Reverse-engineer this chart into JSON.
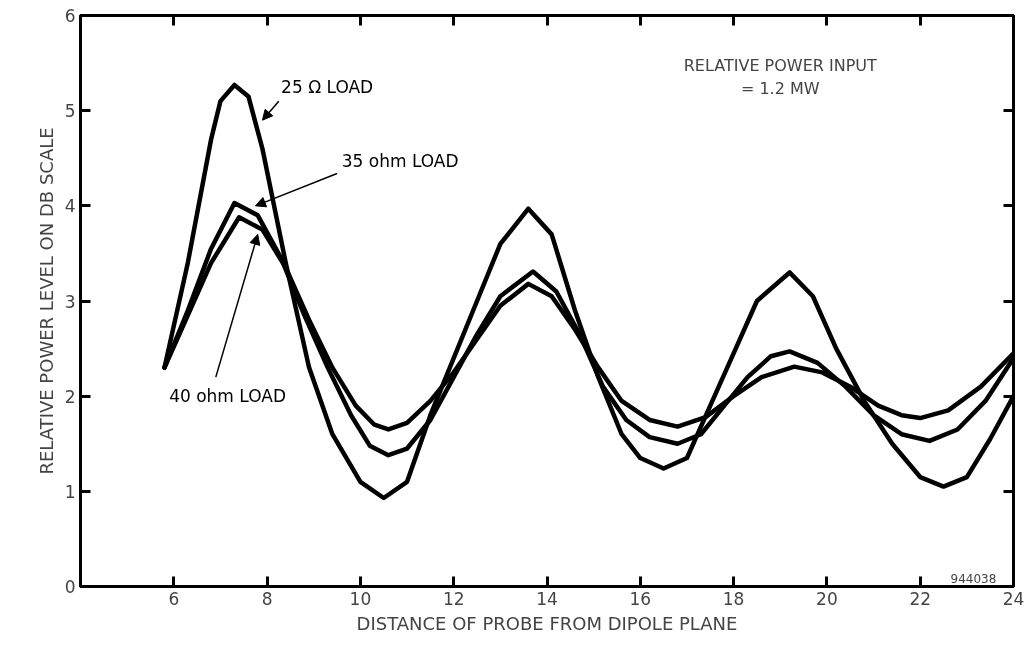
{
  "chart_data": {
    "type": "line",
    "xlabel": "DISTANCE OF PROBE FROM DIPOLE PLANE",
    "ylabel": "RELATIVE POWER LEVEL ON DB SCALE",
    "xlim": [
      4,
      24
    ],
    "ylim": [
      0,
      6
    ],
    "xticks": [
      6,
      8,
      10,
      12,
      14,
      16,
      18,
      20,
      22,
      24
    ],
    "yticks": [
      0,
      1,
      2,
      3,
      4,
      5,
      6
    ],
    "grid": false,
    "legend": false,
    "marker": "none",
    "line_style": "solid",
    "annotations": [
      "RELATIVE POWER INPUT\n= 1.2 MW",
      "944038"
    ],
    "series": [
      {
        "name": "25 Ω LOAD",
        "color": "#000000",
        "x": [
          5.8,
          6.3,
          6.8,
          7.0,
          7.3,
          7.6,
          7.9,
          8.4,
          8.9,
          9.4,
          10.0,
          10.5,
          11.0,
          11.5,
          12.0,
          12.5,
          13.0,
          13.6,
          14.1,
          14.6,
          15.1,
          15.6,
          16.0,
          16.5,
          17.0,
          17.5,
          18.0,
          18.5,
          19.2,
          19.7,
          20.2,
          20.8,
          21.4,
          22.0,
          22.5,
          23.0,
          23.5,
          24.0
        ],
        "values": [
          2.3,
          3.4,
          4.7,
          5.1,
          5.27,
          5.15,
          4.6,
          3.4,
          2.3,
          1.6,
          1.1,
          0.93,
          1.1,
          1.8,
          2.4,
          3.0,
          3.6,
          3.97,
          3.7,
          2.9,
          2.2,
          1.6,
          1.35,
          1.24,
          1.35,
          1.9,
          2.45,
          3.0,
          3.3,
          3.05,
          2.5,
          1.95,
          1.5,
          1.15,
          1.05,
          1.15,
          1.55,
          2.0
        ]
      },
      {
        "name": "35 ohm LOAD",
        "color": "#000000",
        "x": [
          5.8,
          6.3,
          6.8,
          7.3,
          7.8,
          8.3,
          8.8,
          9.3,
          9.8,
          10.2,
          10.6,
          11.0,
          11.5,
          12.0,
          12.5,
          13.0,
          13.7,
          14.2,
          14.7,
          15.2,
          15.7,
          16.2,
          16.8,
          17.3,
          17.8,
          18.3,
          18.8,
          19.2,
          19.8,
          20.4,
          21.0,
          21.6,
          22.2,
          22.8,
          23.4,
          24.0
        ],
        "values": [
          2.3,
          2.9,
          3.55,
          4.03,
          3.9,
          3.45,
          2.85,
          2.3,
          1.8,
          1.48,
          1.38,
          1.45,
          1.75,
          2.2,
          2.65,
          3.05,
          3.31,
          3.1,
          2.65,
          2.1,
          1.75,
          1.57,
          1.5,
          1.6,
          1.9,
          2.2,
          2.42,
          2.47,
          2.35,
          2.1,
          1.8,
          1.6,
          1.53,
          1.65,
          1.95,
          2.4
        ]
      },
      {
        "name": "40 ohm LOAD",
        "color": "#000000",
        "x": [
          5.8,
          6.3,
          6.8,
          7.4,
          7.9,
          8.4,
          8.9,
          9.4,
          9.9,
          10.3,
          10.6,
          11.0,
          11.5,
          12.0,
          12.5,
          13.0,
          13.6,
          14.1,
          14.6,
          15.1,
          15.6,
          16.2,
          16.8,
          17.4,
          18.0,
          18.6,
          19.3,
          19.9,
          20.5,
          21.1,
          21.6,
          22.0,
          22.6,
          23.3,
          24.0
        ],
        "values": [
          2.3,
          2.85,
          3.4,
          3.88,
          3.75,
          3.35,
          2.8,
          2.3,
          1.9,
          1.7,
          1.65,
          1.72,
          1.95,
          2.25,
          2.6,
          2.95,
          3.18,
          3.05,
          2.7,
          2.3,
          1.95,
          1.75,
          1.68,
          1.78,
          2.0,
          2.2,
          2.31,
          2.25,
          2.1,
          1.9,
          1.8,
          1.77,
          1.85,
          2.1,
          2.45
        ]
      }
    ]
  }
}
